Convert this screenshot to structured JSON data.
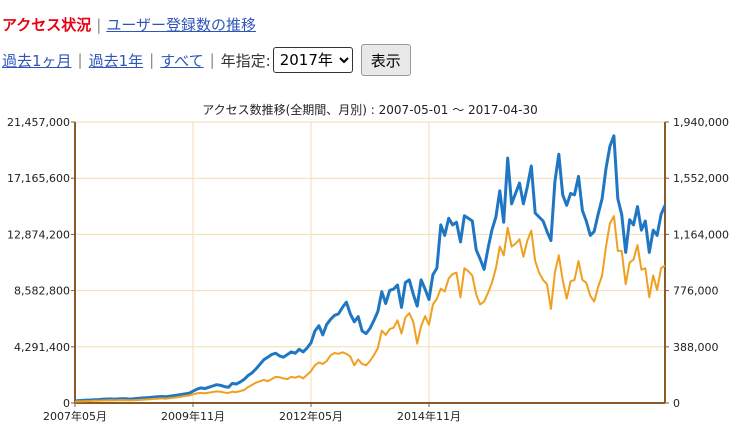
{
  "nav": {
    "current": "アクセス状況",
    "separator": "|",
    "link": "ユーザー登録数の推移"
  },
  "range": {
    "past_month": "過去1ヶ月",
    "past_year": "過去1年",
    "all": "すべて",
    "separator": "|",
    "year_label": "年指定:",
    "year_value": "2017年",
    "show_button": "表示"
  },
  "colors": {
    "accent_red": "#e60012",
    "link_blue": "#2f55b8",
    "series_blue": "#1f77c4",
    "series_orange": "#f0a020",
    "axis_brown": "#8b5a2b"
  },
  "chart_data": {
    "type": "line",
    "title": "アクセス数推移(全期間、月別) : 2007-05-01 ～ 2017-04-30",
    "xlabel": "",
    "ylabel": "",
    "left_ticks": [
      "21,457,000",
      "17,165,600",
      "12,874,200",
      "8,582,800",
      "4,291,400",
      "0"
    ],
    "right_ticks": [
      "1,940,000",
      "1,552,000",
      "1,164,000",
      "776,000",
      "388,000",
      "0"
    ],
    "x_ticks": [
      "2007年05月",
      "2009年11月",
      "2012年05月",
      "2014年11月"
    ],
    "ylim_left": [
      0,
      21457000
    ],
    "ylim_right": [
      0,
      1940000
    ],
    "grid": true,
    "series": [
      {
        "axis": "left",
        "color": "#1f77c4",
        "values": [
          150000,
          180000,
          200000,
          220000,
          230000,
          250000,
          260000,
          280000,
          300000,
          310000,
          290000,
          310000,
          330000,
          320000,
          300000,
          320000,
          350000,
          380000,
          400000,
          420000,
          450000,
          480000,
          500000,
          470000,
          520000,
          560000,
          600000,
          650000,
          700000,
          750000,
          900000,
          1050000,
          1150000,
          1100000,
          1200000,
          1300000,
          1400000,
          1350000,
          1250000,
          1200000,
          1500000,
          1450000,
          1600000,
          1800000,
          2100000,
          2300000,
          2600000,
          2950000,
          3300000,
          3500000,
          3700000,
          3800000,
          3600000,
          3500000,
          3700000,
          3900000,
          3800000,
          4100000,
          3900000,
          4200000,
          4600000,
          5500000,
          5900000,
          5200000,
          6000000,
          6400000,
          6700000,
          6800000,
          7300000,
          7700000,
          6800000,
          6200000,
          6600000,
          5500000,
          5300000,
          5700000,
          6300000,
          7000000,
          8500000,
          7600000,
          8600000,
          8700000,
          9000000,
          7300000,
          9200000,
          9400000,
          8300000,
          7400000,
          9400000,
          8700000,
          7900000,
          9800000,
          10300000,
          13600000,
          12800000,
          14100000,
          13600000,
          13800000,
          12300000,
          14300000,
          14100000,
          13900000,
          11700000,
          11000000,
          10200000,
          11800000,
          13200000,
          14200000,
          16200000,
          13800000,
          18700000,
          15200000,
          16000000,
          16800000,
          15200000,
          16500000,
          18100000,
          14500000,
          14200000,
          13900000,
          13100000,
          12400000,
          16900000,
          19000000,
          15900000,
          15100000,
          16000000,
          15900000,
          17300000,
          14700000,
          13900000,
          12800000,
          13100000,
          14400000,
          15600000,
          17900000,
          19600000,
          20400000,
          15600000,
          14400000,
          11500000,
          14000000,
          13600000,
          15000000,
          13200000,
          13900000,
          11500000,
          13200000,
          12800000,
          14400000,
          15100000
        ],
        "comment": ""
      },
      {
        "axis": "right",
        "color": "#f0a020",
        "values": [
          10000,
          11000,
          12000,
          13000,
          14000,
          15000,
          16000,
          17000,
          18000,
          19000,
          18000,
          19000,
          20000,
          19000,
          18000,
          19000,
          21000,
          23000,
          24000,
          26000,
          28000,
          30000,
          32000,
          30000,
          33000,
          36000,
          40000,
          44000,
          48000,
          52000,
          60000,
          66000,
          70000,
          68000,
          72000,
          76000,
          80000,
          78000,
          72000,
          70000,
          78000,
          75000,
          82000,
          90000,
          110000,
          125000,
          140000,
          150000,
          160000,
          150000,
          165000,
          180000,
          178000,
          170000,
          165000,
          180000,
          175000,
          185000,
          170000,
          195000,
          220000,
          260000,
          280000,
          270000,
          290000,
          330000,
          345000,
          340000,
          350000,
          340000,
          320000,
          260000,
          300000,
          270000,
          260000,
          290000,
          330000,
          380000,
          500000,
          470000,
          510000,
          520000,
          570000,
          480000,
          590000,
          620000,
          560000,
          410000,
          530000,
          600000,
          540000,
          680000,
          720000,
          790000,
          770000,
          860000,
          890000,
          900000,
          730000,
          930000,
          910000,
          880000,
          750000,
          680000,
          700000,
          760000,
          830000,
          930000,
          1080000,
          1020000,
          1210000,
          1080000,
          1100000,
          1130000,
          1010000,
          1120000,
          1190000,
          980000,
          900000,
          850000,
          820000,
          650000,
          900000,
          1020000,
          850000,
          720000,
          840000,
          850000,
          980000,
          850000,
          830000,
          740000,
          700000,
          800000,
          880000,
          1080000,
          1240000,
          1290000,
          1050000,
          1050000,
          820000,
          970000,
          990000,
          1090000,
          920000,
          930000,
          730000,
          880000,
          780000,
          930000,
          950000
        ]
      }
    ]
  }
}
